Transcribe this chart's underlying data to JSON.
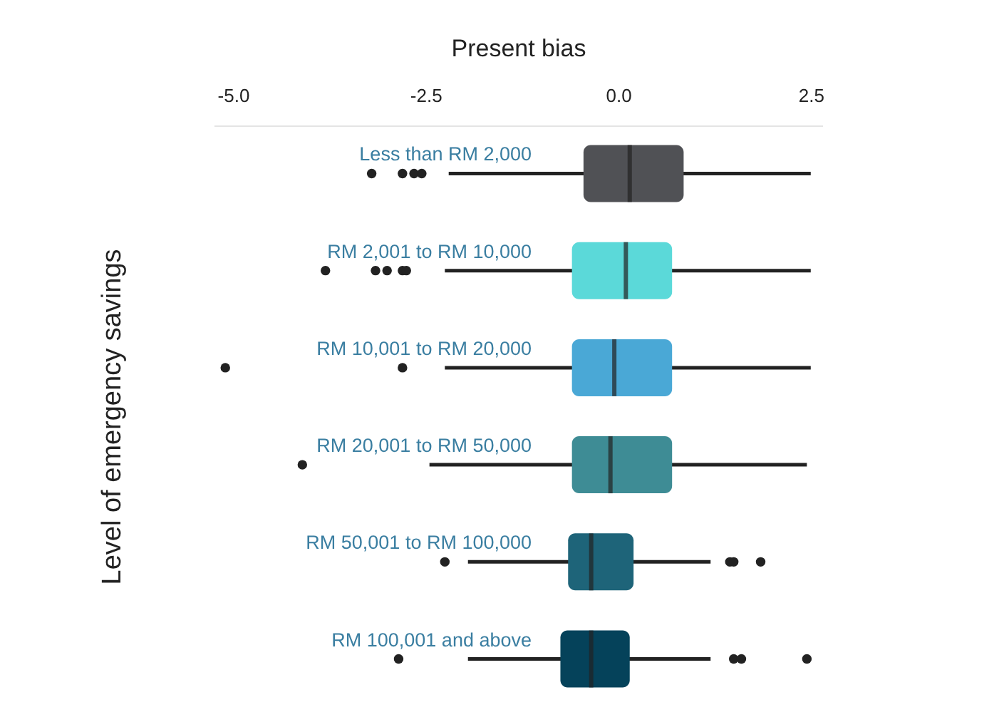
{
  "chart_data": {
    "type": "box",
    "xlabel": "Present bias",
    "ylabel": "Level of emergency savings",
    "orientation": "horizontal",
    "categories": [
      "Less than RM 2,000",
      "RM 2,001 to RM 10,000",
      "RM 10,001 to RM 20,000",
      "RM 20,001 to RM 50,000",
      "RM 50,001 to RM 100,000",
      "RM 100,001 and above"
    ],
    "colors": [
      "#505155",
      "#5bd9d9",
      "#4aa8d6",
      "#3e8c95",
      "#1e6479",
      "#05425a"
    ],
    "boxes": [
      {
        "low": -2.2,
        "q1": -0.45,
        "median": 0.15,
        "q3": 0.85,
        "high": 2.5,
        "outliers": [
          -3.2,
          -2.8,
          -2.65,
          -2.55
        ]
      },
      {
        "low": -2.25,
        "q1": -0.6,
        "median": 0.1,
        "q3": 0.7,
        "high": 2.5,
        "outliers": [
          -3.8,
          -3.15,
          -3.0,
          -2.8,
          -2.75
        ]
      },
      {
        "low": -2.25,
        "q1": -0.6,
        "median": -0.05,
        "q3": 0.7,
        "high": 2.5,
        "outliers": [
          -5.1,
          -2.8
        ]
      },
      {
        "low": -2.45,
        "q1": -0.6,
        "median": -0.1,
        "q3": 0.7,
        "high": 2.45,
        "outliers": [
          -4.1
        ]
      },
      {
        "low": -1.95,
        "q1": -0.65,
        "median": -0.35,
        "q3": 0.2,
        "high": 1.2,
        "outliers": [
          -2.25,
          1.45,
          1.5,
          1.85
        ]
      },
      {
        "low": -1.95,
        "q1": -0.75,
        "median": -0.35,
        "q3": 0.15,
        "high": 1.2,
        "outliers": [
          -2.85,
          1.5,
          1.6,
          2.45
        ]
      }
    ],
    "xlim": [
      -5.25,
      2.65
    ],
    "xticks": [
      {
        "value": -5,
        "label": "-5.0"
      },
      {
        "value": -2.5,
        "label": "-2.5"
      },
      {
        "value": 0,
        "label": "0.0"
      },
      {
        "value": 2.5,
        "label": "2.5"
      }
    ],
    "grid": false
  }
}
